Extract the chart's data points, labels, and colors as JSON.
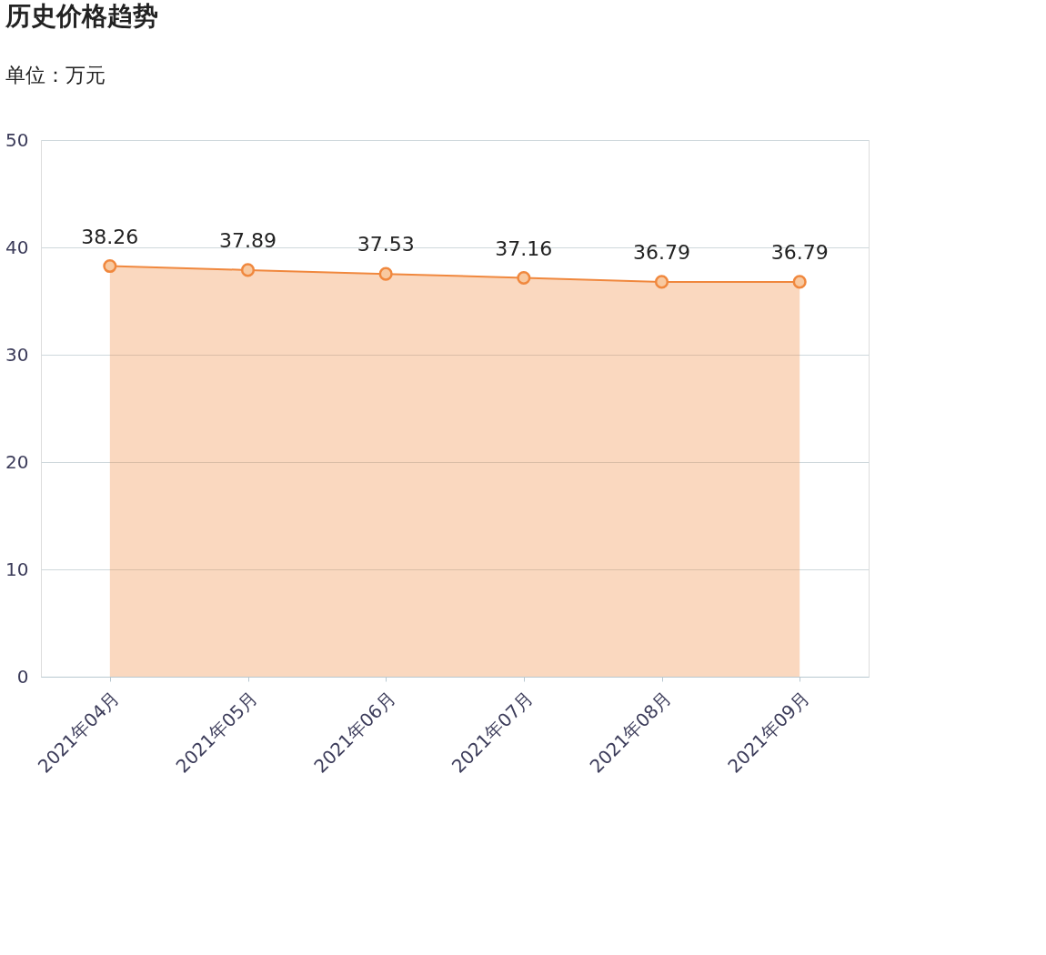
{
  "chart_data": {
    "type": "area",
    "title": "历史价格趋势",
    "subtitle": "单位：万元",
    "categories": [
      "2021年04月",
      "2021年05月",
      "2021年06月",
      "2021年07月",
      "2021年08月",
      "2021年09月"
    ],
    "series": [
      {
        "color": "#f0883e",
        "values": [
          38.26,
          37.89,
          37.53,
          37.16,
          36.79,
          36.79
        ]
      }
    ],
    "ylim": [
      0,
      50
    ],
    "yticks": [
      0,
      10,
      20,
      30,
      40,
      50
    ],
    "grid": "y",
    "marker": "circle",
    "data_labels": true
  }
}
